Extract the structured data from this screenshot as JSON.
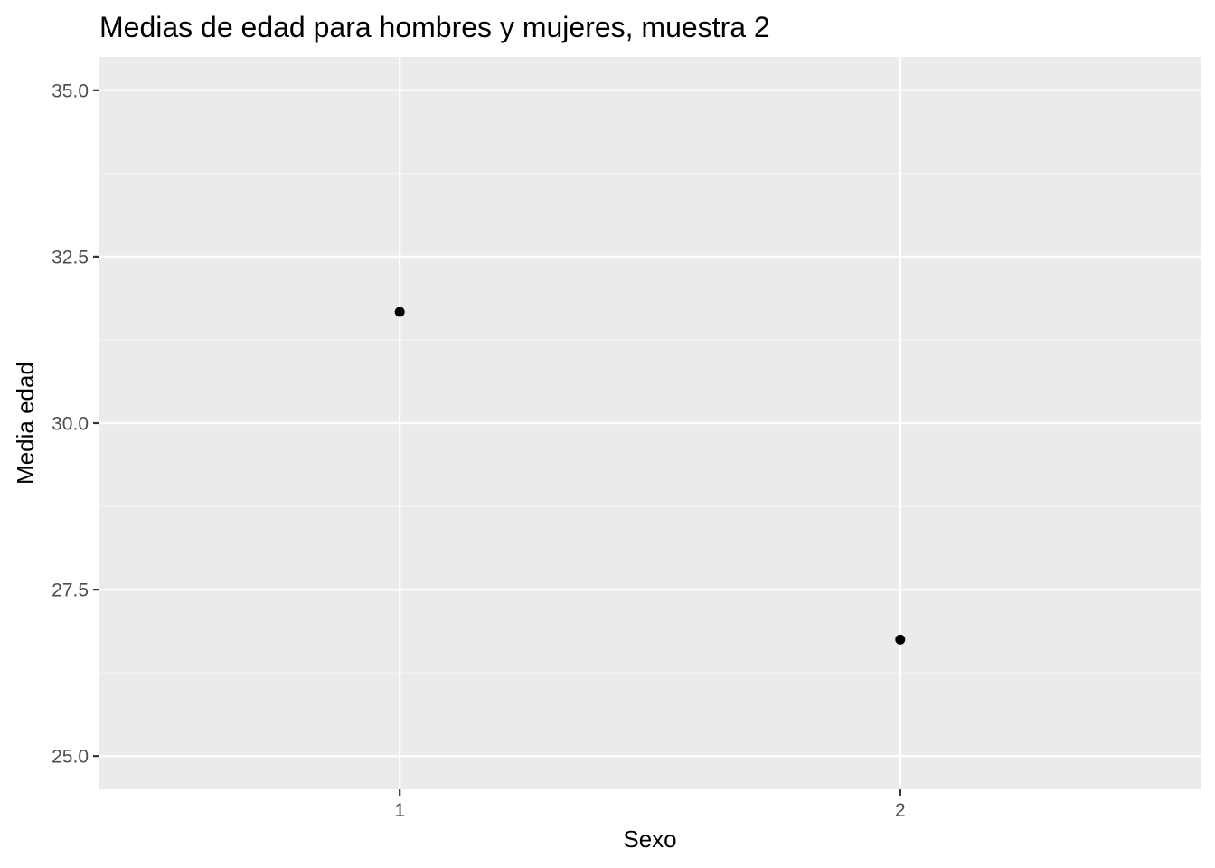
{
  "chart_data": {
    "type": "scatter",
    "title": "Medias de edad para hombres y mujeres, muestra 2",
    "xlabel": "Sexo",
    "ylabel": "Media edad",
    "categories": [
      "1",
      "2"
    ],
    "points": [
      {
        "x": "1",
        "y": 31.67
      },
      {
        "x": "2",
        "y": 26.75
      }
    ],
    "ylim": [
      24.5,
      35.5
    ],
    "y_ticks": [
      25.0,
      27.5,
      30.0,
      32.5,
      35.0
    ],
    "y_tick_labels": [
      "25.0",
      "27.5",
      "30.0",
      "32.5",
      "35.0"
    ],
    "grid": true,
    "colors": {
      "panel_background": "#ebebeb",
      "grid_major": "#ffffff",
      "grid_minor": "#f5f5f5",
      "point": "#000000",
      "tick": "#333333"
    }
  }
}
